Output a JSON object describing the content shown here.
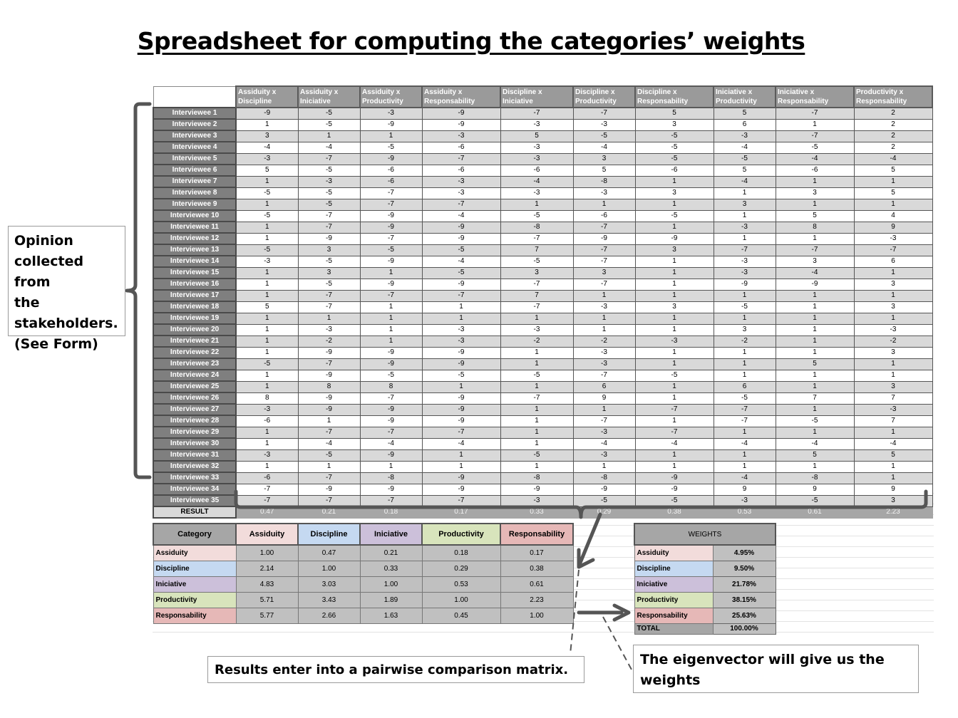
{
  "title": "Spreadsheet for computing the categories’ weights",
  "main_table": {
    "columns": [
      "Assiduity x Discipline",
      "Assiduity x Iniciative",
      "Assiduity x Productivity",
      "Assiduity x Responsability",
      "Discipline x Iniciative",
      "Discipline x Productivity",
      "Discipline x Responsability",
      "Iniciative x Productivity",
      "Iniciative x Responsability",
      "Productivity x Responsability"
    ],
    "rows": [
      {
        "label": "Interviewee 1",
        "values": [
          "-9",
          "-5",
          "-3",
          "-9",
          "-7",
          "-7",
          "5",
          "5",
          "-7",
          "2"
        ]
      },
      {
        "label": "Interviewee 2",
        "values": [
          "1",
          "-5",
          "-9",
          "-9",
          "-3",
          "-3",
          "3",
          "6",
          "1",
          "2"
        ]
      },
      {
        "label": "Interviewee 3",
        "values": [
          "3",
          "1",
          "1",
          "-3",
          "5",
          "-5",
          "-5",
          "-3",
          "-7",
          "2"
        ]
      },
      {
        "label": "Interviewee 4",
        "values": [
          "-4",
          "-4",
          "-5",
          "-6",
          "-3",
          "-4",
          "-5",
          "-4",
          "-5",
          "2"
        ]
      },
      {
        "label": "Interviewee 5",
        "values": [
          "-3",
          "-7",
          "-9",
          "-7",
          "-3",
          "3",
          "-5",
          "-5",
          "-4",
          "-4"
        ]
      },
      {
        "label": "Interviewee 6",
        "values": [
          "5",
          "-5",
          "-6",
          "-6",
          "-6",
          "5",
          "-6",
          "5",
          "-6",
          "5"
        ]
      },
      {
        "label": "Interviewee 7",
        "values": [
          "1",
          "-3",
          "-6",
          "-3",
          "-4",
          "-8",
          "1",
          "-4",
          "1",
          "1"
        ]
      },
      {
        "label": "Interviewee 8",
        "values": [
          "-5",
          "-5",
          "-7",
          "-3",
          "-3",
          "-3",
          "3",
          "1",
          "3",
          "5"
        ]
      },
      {
        "label": "Interviewee 9",
        "values": [
          "1",
          "-5",
          "-7",
          "-7",
          "1",
          "1",
          "1",
          "3",
          "1",
          "1"
        ]
      },
      {
        "label": "Interviewee 10",
        "values": [
          "-5",
          "-7",
          "-9",
          "-4",
          "-5",
          "-6",
          "-5",
          "1",
          "5",
          "4"
        ]
      },
      {
        "label": "Interviewee 11",
        "values": [
          "1",
          "-7",
          "-9",
          "-9",
          "-8",
          "-7",
          "1",
          "-3",
          "8",
          "9"
        ]
      },
      {
        "label": "Interviewee 12",
        "values": [
          "1",
          "-9",
          "-7",
          "-9",
          "-7",
          "-9",
          "-9",
          "1",
          "1",
          "-3"
        ]
      },
      {
        "label": "Interviewee 13",
        "values": [
          "-5",
          "3",
          "-5",
          "-5",
          "7",
          "-7",
          "3",
          "-7",
          "-7",
          "-7"
        ]
      },
      {
        "label": "Interviewee 14",
        "values": [
          "-3",
          "-5",
          "-9",
          "-4",
          "-5",
          "-7",
          "1",
          "-3",
          "3",
          "6"
        ]
      },
      {
        "label": "Interviewee 15",
        "values": [
          "1",
          "3",
          "1",
          "-5",
          "3",
          "3",
          "1",
          "-3",
          "-4",
          "1"
        ]
      },
      {
        "label": "Interviewee 16",
        "values": [
          "1",
          "-5",
          "-9",
          "-9",
          "-7",
          "-7",
          "1",
          "-9",
          "-9",
          "3"
        ]
      },
      {
        "label": "Interviewee 17",
        "values": [
          "1",
          "-7",
          "-7",
          "-7",
          "7",
          "1",
          "1",
          "1",
          "1",
          "1"
        ]
      },
      {
        "label": "Interviewee 18",
        "values": [
          "5",
          "-7",
          "1",
          "1",
          "-7",
          "-3",
          "3",
          "-5",
          "1",
          "3"
        ]
      },
      {
        "label": "Interviewee 19",
        "values": [
          "1",
          "1",
          "1",
          "1",
          "1",
          "1",
          "1",
          "1",
          "1",
          "1"
        ]
      },
      {
        "label": "Interviewee 20",
        "values": [
          "1",
          "-3",
          "1",
          "-3",
          "-3",
          "1",
          "1",
          "3",
          "1",
          "-3"
        ]
      },
      {
        "label": "Interviewee 21",
        "values": [
          "1",
          "-2",
          "1",
          "-3",
          "-2",
          "-2",
          "-3",
          "-2",
          "1",
          "-2"
        ]
      },
      {
        "label": "Interviewee 22",
        "values": [
          "1",
          "-9",
          "-9",
          "-9",
          "1",
          "-3",
          "1",
          "1",
          "1",
          "3"
        ]
      },
      {
        "label": "Interviewee 23",
        "values": [
          "-5",
          "-7",
          "-9",
          "-9",
          "1",
          "-3",
          "1",
          "1",
          "5",
          "1"
        ]
      },
      {
        "label": "Interviewee 24",
        "values": [
          "1",
          "-9",
          "-5",
          "-5",
          "-5",
          "-7",
          "-5",
          "1",
          "1",
          "1"
        ]
      },
      {
        "label": "Interviewee 25",
        "values": [
          "1",
          "8",
          "8",
          "1",
          "1",
          "6",
          "1",
          "6",
          "1",
          "3"
        ]
      },
      {
        "label": "Interviewee 26",
        "values": [
          "8",
          "-9",
          "-7",
          "-9",
          "-7",
          "9",
          "1",
          "-5",
          "7",
          "7"
        ]
      },
      {
        "label": "Interviewee 27",
        "values": [
          "-3",
          "-9",
          "-9",
          "-9",
          "1",
          "1",
          "-7",
          "-7",
          "1",
          "-3"
        ]
      },
      {
        "label": "Interviewee 28",
        "values": [
          "-6",
          "1",
          "-9",
          "-9",
          "1",
          "-7",
          "1",
          "-7",
          "-5",
          "7"
        ]
      },
      {
        "label": "Interviewee 29",
        "values": [
          "1",
          "-7",
          "-7",
          "-7",
          "1",
          "-3",
          "-7",
          "1",
          "1",
          "1"
        ]
      },
      {
        "label": "Interviewee 30",
        "values": [
          "1",
          "-4",
          "-4",
          "-4",
          "1",
          "-4",
          "-4",
          "-4",
          "-4",
          "-4"
        ]
      },
      {
        "label": "Interviewee 31",
        "values": [
          "-3",
          "-5",
          "-9",
          "1",
          "-5",
          "-3",
          "1",
          "1",
          "5",
          "5"
        ]
      },
      {
        "label": "Interviewee 32",
        "values": [
          "1",
          "1",
          "1",
          "1",
          "1",
          "1",
          "1",
          "1",
          "1",
          "1"
        ]
      },
      {
        "label": "Interviewee 33",
        "values": [
          "-6",
          "-7",
          "-8",
          "-9",
          "-8",
          "-8",
          "-9",
          "-4",
          "-8",
          "1"
        ]
      },
      {
        "label": "Interviewee 34",
        "values": [
          "-7",
          "-9",
          "-9",
          "-9",
          "-9",
          "-9",
          "-9",
          "9",
          "9",
          "9"
        ]
      },
      {
        "label": "Interviewee 35",
        "values": [
          "-7",
          "-7",
          "-7",
          "-7",
          "-3",
          "-5",
          "-5",
          "-3",
          "-5",
          "3"
        ]
      }
    ],
    "result_label": "RESULT",
    "result_values": [
      "0.47",
      "0.21",
      "0.18",
      "0.17",
      "0.33",
      "0.29",
      "0.38",
      "0.53",
      "0.61",
      "2.23"
    ]
  },
  "pairwise": {
    "corner_label": "Category",
    "categories": [
      {
        "name": "Assiduity",
        "color": "#f2dcdb"
      },
      {
        "name": "Discipline",
        "color": "#c5d9f1"
      },
      {
        "name": "Iniciative",
        "color": "#ccc0da"
      },
      {
        "name": "Productivity",
        "color": "#d8e4bc"
      },
      {
        "name": "Responsability",
        "color": "#e6b8b7"
      }
    ],
    "matrix": [
      [
        "1.00",
        "0.47",
        "0.21",
        "0.18",
        "0.17"
      ],
      [
        "2.14",
        "1.00",
        "0.33",
        "0.29",
        "0.38"
      ],
      [
        "4.83",
        "3.03",
        "1.00",
        "0.53",
        "0.61"
      ],
      [
        "5.71",
        "3.43",
        "1.89",
        "1.00",
        "2.23"
      ],
      [
        "5.77",
        "2.66",
        "1.63",
        "0.45",
        "1.00"
      ]
    ]
  },
  "weights": {
    "header": "WEIGHTS",
    "rows": [
      {
        "label": "Assiduity",
        "value": "4.95%"
      },
      {
        "label": "Discipline",
        "value": "9.50%"
      },
      {
        "label": "Iniciative",
        "value": "21.78%"
      },
      {
        "label": "Productivity",
        "value": "38.15%"
      },
      {
        "label": "Responsability",
        "value": "25.63%"
      }
    ],
    "total_label": "TOTAL",
    "total_value": "100.00%"
  },
  "callouts": {
    "left": "Opinion\ncollected from\nthe\nstakeholders.\n(See Form)",
    "middle": "Results enter into a pairwise comparison matrix.",
    "right": "The eigenvector will give us the weights"
  }
}
